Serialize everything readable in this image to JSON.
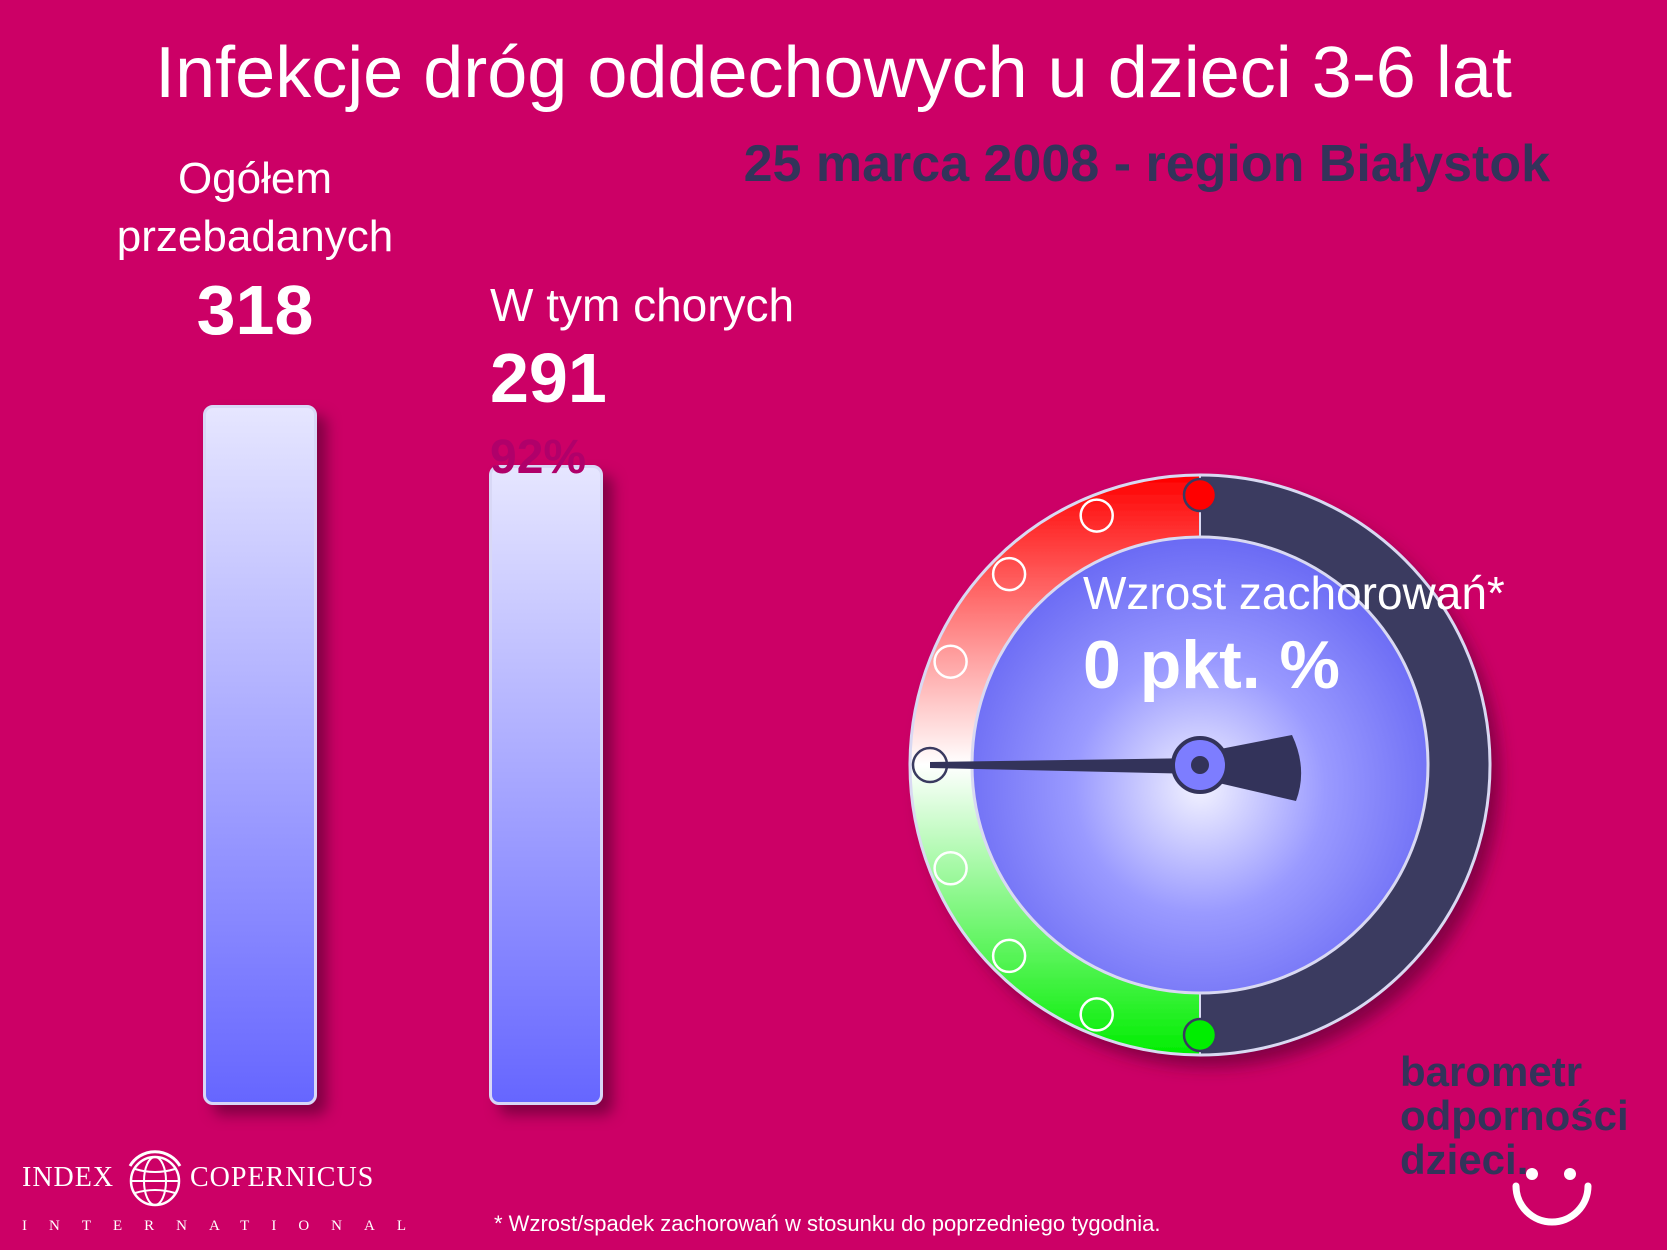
{
  "chart_data": {
    "type": "bar",
    "title": "Infekcje dróg oddechowych u dzieci 3-6 lat",
    "subtitle": "25 marca 2008 - region Białystok",
    "categories": [
      "Ogółem przebadanych",
      "W tym chorych"
    ],
    "values": [
      318,
      291
    ],
    "bars": [
      {
        "label": "Ogółem przebadanych",
        "value_text": "318",
        "value": 318
      },
      {
        "label": "W tym chorych",
        "value_text": "291",
        "value": 291,
        "percent_text": "92%"
      }
    ],
    "gauge": {
      "label": "Wzrost zachorowań*",
      "value_text": "0 pkt. %",
      "value": 0,
      "colors": {
        "increase": "#ff0000",
        "neutral": "#ffffff",
        "decrease": "#00ee00"
      }
    }
  },
  "footnote": "* Wzrost/spadek zachorowań w stosunku do poprzedniego tygodnia.",
  "logos": {
    "index": "INDEX",
    "copernicus": "COPERNICUS",
    "international": "INTERNATIONAL",
    "barometr_lines": [
      "barometr",
      "odporności",
      "dzieci."
    ]
  },
  "colors": {
    "background": "#cc0066",
    "subtitle": "#33335a",
    "percent": "#b0006a",
    "gauge_face": "#7070ff",
    "gauge_dark": "#3a3a60"
  }
}
